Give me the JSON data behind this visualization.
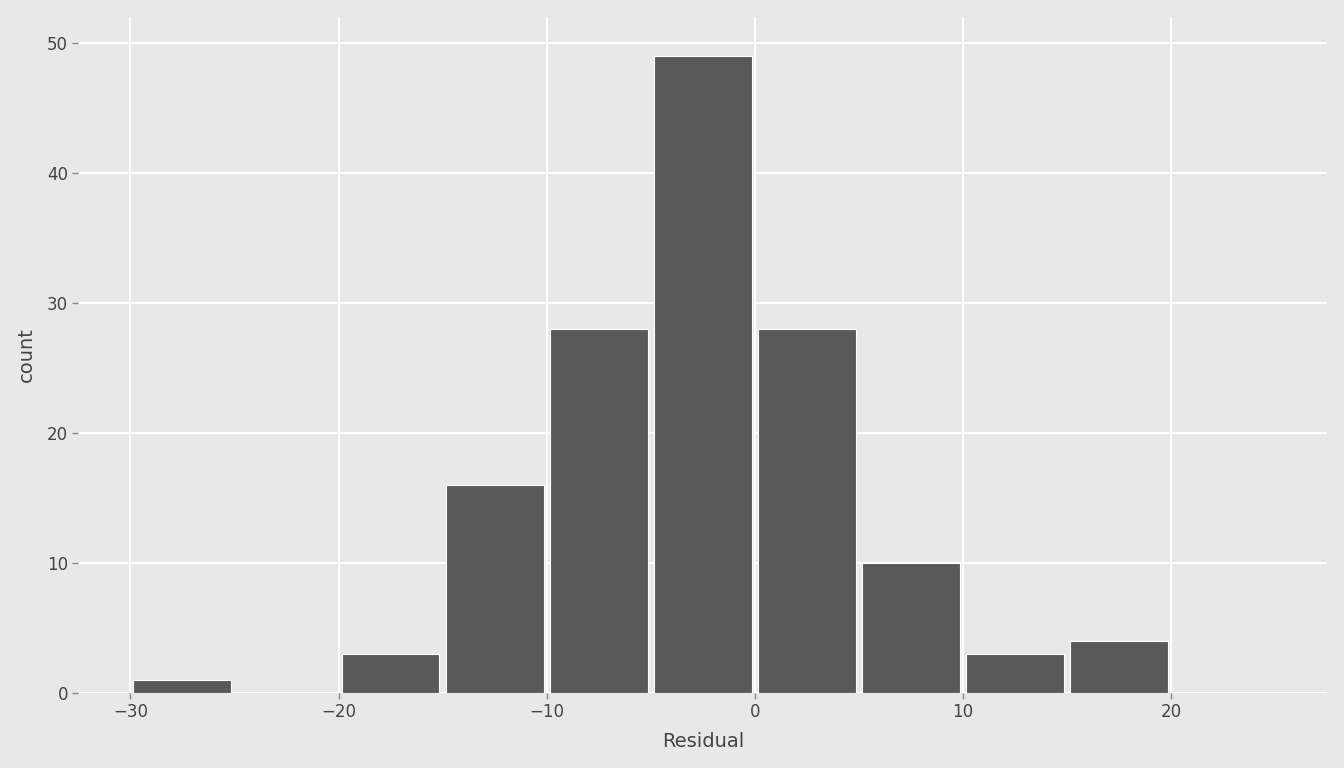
{
  "title": "",
  "xlabel": "Residual",
  "ylabel": "count",
  "bar_color": "#595959",
  "bar_edgecolor": "#ffffff",
  "background_color": "#e8e8e8",
  "panel_background": "#e8e8e8",
  "grid_color": "#ffffff",
  "xlim": [
    -32.5,
    27.5
  ],
  "ylim": [
    0,
    52
  ],
  "xticks": [
    -30,
    -20,
    -10,
    0,
    10,
    20
  ],
  "yticks": [
    0,
    10,
    20,
    30,
    40,
    50
  ],
  "bin_edges": [
    -30,
    -25,
    -20,
    -15,
    -10,
    -5,
    0,
    5,
    10,
    15,
    20,
    25
  ],
  "bin_counts": [
    1,
    0,
    3,
    16,
    28,
    49,
    28,
    10,
    3,
    4,
    0
  ],
  "bar_width": 4.7,
  "xlabel_fontsize": 14,
  "ylabel_fontsize": 14,
  "tick_fontsize": 12,
  "label_color": "#444444"
}
